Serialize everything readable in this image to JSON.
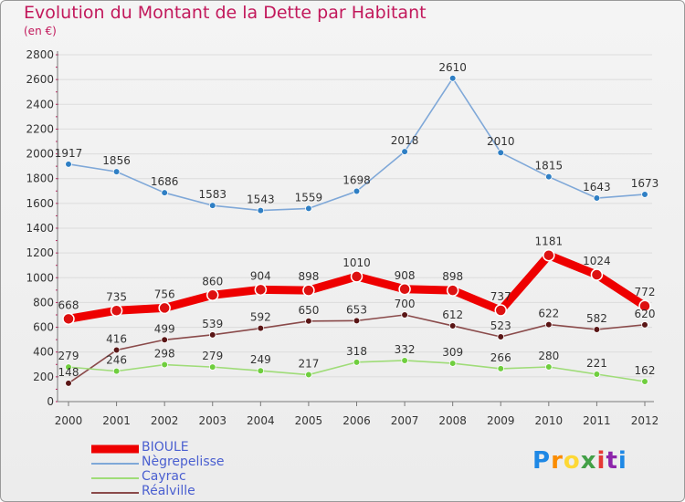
{
  "title": "Evolution du Montant de la Dette par Habitant",
  "subtitle": "(en €)",
  "logo_text": "Proxiti",
  "colors": {
    "title": "#c2185b",
    "axis": "#7a7a7a",
    "grid": "#dcdcdc",
    "legend_text": "#4a5fd0"
  },
  "chart_data": {
    "type": "line",
    "x": [
      "2000",
      "2001",
      "2002",
      "2003",
      "2004",
      "2005",
      "2006",
      "2007",
      "2008",
      "2009",
      "2010",
      "2011",
      "2012"
    ],
    "ylim": [
      0,
      2800
    ],
    "yticks": [
      0,
      200,
      400,
      600,
      800,
      1000,
      1200,
      1400,
      1600,
      1800,
      2000,
      2200,
      2400,
      2600,
      2800
    ],
    "grid": true,
    "legend_position": "bottom-left",
    "series": [
      {
        "name": "BIOULE",
        "color": "#ee0000",
        "point_color": "#dd1111",
        "emphasis": true,
        "values": [
          668,
          735,
          756,
          860,
          904,
          898,
          1010,
          908,
          898,
          737,
          1181,
          1024,
          772
        ]
      },
      {
        "name": "Nègrepelisse",
        "color": "#7fa8d8",
        "point_color": "#2f7fc4",
        "values": [
          1917,
          1856,
          1686,
          1583,
          1543,
          1559,
          1698,
          2018,
          2610,
          2010,
          1815,
          1643,
          1673
        ]
      },
      {
        "name": "Cayrac",
        "color": "#9fdc78",
        "point_color": "#6fce3e",
        "values": [
          279,
          246,
          298,
          279,
          249,
          217,
          318,
          332,
          309,
          266,
          280,
          221,
          162
        ]
      },
      {
        "name": "Réalville",
        "color": "#8a4a4a",
        "point_color": "#5a1616",
        "values": [
          148,
          416,
          499,
          539,
          592,
          650,
          653,
          700,
          612,
          523,
          622,
          582,
          620
        ]
      }
    ]
  }
}
